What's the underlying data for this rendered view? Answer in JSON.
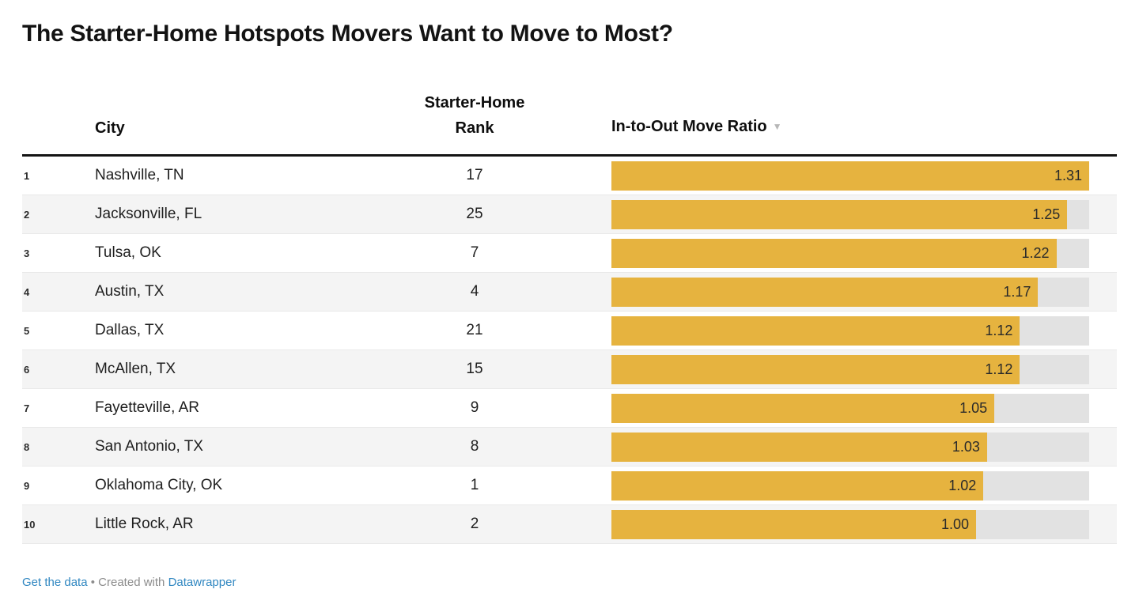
{
  "title": "The Starter-Home Hotspots Movers Want to Move to Most?",
  "header": {
    "city_label": "City",
    "rank_label_line1": "Starter-Home",
    "rank_label_line2": "Rank",
    "ratio_label": "In-to-Out Move Ratio",
    "sort_arrow": "▼"
  },
  "rows": [
    {
      "index": "1",
      "city": "Nashville, TN",
      "rank": "17",
      "ratio": 1.31,
      "ratio_label": "1.31"
    },
    {
      "index": "2",
      "city": "Jacksonville, FL",
      "rank": "25",
      "ratio": 1.25,
      "ratio_label": "1.25"
    },
    {
      "index": "3",
      "city": "Tulsa, OK",
      "rank": "7",
      "ratio": 1.22,
      "ratio_label": "1.22"
    },
    {
      "index": "4",
      "city": "Austin, TX",
      "rank": "4",
      "ratio": 1.17,
      "ratio_label": "1.17"
    },
    {
      "index": "5",
      "city": "Dallas, TX",
      "rank": "21",
      "ratio": 1.12,
      "ratio_label": "1.12"
    },
    {
      "index": "6",
      "city": "McAllen, TX",
      "rank": "15",
      "ratio": 1.12,
      "ratio_label": "1.12"
    },
    {
      "index": "7",
      "city": "Fayetteville, AR",
      "rank": "9",
      "ratio": 1.05,
      "ratio_label": "1.05"
    },
    {
      "index": "8",
      "city": "San Antonio, TX",
      "rank": "8",
      "ratio": 1.03,
      "ratio_label": "1.03"
    },
    {
      "index": "9",
      "city": "Oklahoma City, OK",
      "rank": "1",
      "ratio": 1.02,
      "ratio_label": "1.02"
    },
    {
      "index": "10",
      "city": "Little Rock, AR",
      "rank": "2",
      "ratio": 1.0,
      "ratio_label": "1.00"
    }
  ],
  "bar_max": 1.31,
  "footer": {
    "get_data_label": "Get the data",
    "separator": "•",
    "created_with": "Created with",
    "brand_label": "Datawrapper"
  },
  "colors": {
    "bar": "#e6b33f",
    "track": "#e2e2e2",
    "row_alt": "#f4f4f4",
    "link": "#3087c1",
    "header_rule": "#141414"
  },
  "chart_data": {
    "type": "bar",
    "orientation": "horizontal",
    "title": "The Starter-Home Hotspots Movers Want to Move to Most?",
    "categories": [
      "Nashville, TN",
      "Jacksonville, FL",
      "Tulsa, OK",
      "Austin, TX",
      "Dallas, TX",
      "McAllen, TX",
      "Fayetteville, AR",
      "San Antonio, TX",
      "Oklahoma City, OK",
      "Little Rock, AR"
    ],
    "series": [
      {
        "name": "In-to-Out Move Ratio",
        "values": [
          1.31,
          1.25,
          1.22,
          1.17,
          1.12,
          1.12,
          1.05,
          1.03,
          1.02,
          1.0
        ]
      },
      {
        "name": "Starter-Home Rank",
        "values": [
          17,
          25,
          7,
          4,
          21,
          15,
          9,
          8,
          1,
          2
        ]
      }
    ],
    "xlabel": "In-to-Out Move Ratio",
    "ylabel": "City",
    "xlim": [
      0,
      1.31
    ],
    "grid": false,
    "legend_position": "none",
    "sort": "descending by In-to-Out Move Ratio"
  }
}
